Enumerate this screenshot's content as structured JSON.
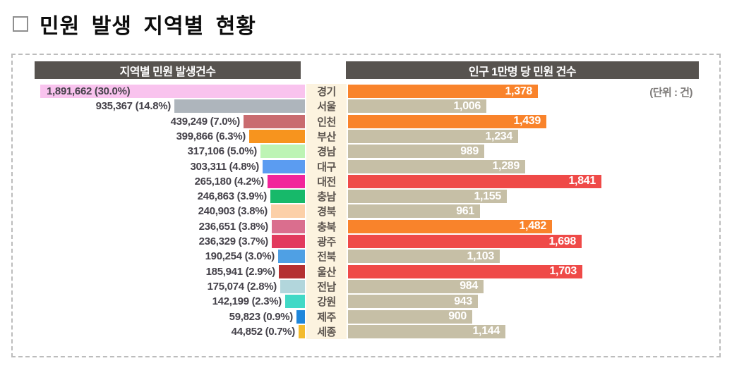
{
  "title": "민원 발생 지역별 현황",
  "panel": {
    "left_header": "지역별 민원 발생건수",
    "right_header": "인구 1만명 당 민원 건수",
    "unit_note": "(단위 : 건)"
  },
  "colors": {
    "header_bg": "#57534f",
    "label_column_bg": "#fcf3df",
    "accent_orange": "#f9832b",
    "accent_red": "#ef4a48",
    "bar_neutral": "#c6bfa6"
  },
  "chart_data": {
    "type": "bar",
    "orientation": "horizontal",
    "title": "민원 발생 지역별 현황",
    "unit": "건",
    "legend_position": "none",
    "grid": false,
    "categories": [
      "경기",
      "서울",
      "인천",
      "부산",
      "경남",
      "대구",
      "대전",
      "충남",
      "경북",
      "충북",
      "광주",
      "전북",
      "울산",
      "전남",
      "강원",
      "제주",
      "세종"
    ],
    "series": [
      {
        "name": "지역별 민원 발생건수",
        "bar_direction": "right-to-left",
        "values": [
          1891662,
          935367,
          439249,
          399866,
          317106,
          303311,
          265180,
          246863,
          240903,
          236651,
          236329,
          190254,
          185941,
          175074,
          142199,
          59823,
          44852
        ],
        "labels": [
          "1,891,662 (30.0%)",
          "935,367 (14.8%)",
          "439,249 (7.0%)",
          "399,866 (6.3%)",
          "317,106 (5.0%)",
          "303,311 (4.8%)",
          "265,180 (4.2%)",
          "246,863 (3.9%)",
          "240,903 (3.8%)",
          "236,651 (3.8%)",
          "236,329 (3.7%)",
          "190,254 (3.0%)",
          "185,941 (2.9%)",
          "175,074 (2.8%)",
          "142,199 (2.3%)",
          "59,823 (0.9%)",
          "44,852 (0.7%)"
        ],
        "colors": [
          "#f9c3ee",
          "#aeb5bc",
          "#c96b6f",
          "#f7941e",
          "#bdf4b4",
          "#5b9cf1",
          "#f2259b",
          "#17b96a",
          "#fcd0a8",
          "#da6e8e",
          "#e23a5e",
          "#4fa0e4",
          "#b53031",
          "#b2d6dc",
          "#41d9c6",
          "#1e86db",
          "#f3bb2e"
        ],
        "xmax": 1891662
      },
      {
        "name": "인구 1만명 당 민원 건수",
        "bar_direction": "left-to-right",
        "values": [
          1378,
          1006,
          1439,
          1234,
          989,
          1289,
          1841,
          1155,
          961,
          1482,
          1698,
          1103,
          1703,
          984,
          943,
          900,
          1144
        ],
        "labels": [
          "1,378",
          "1,006",
          "1,439",
          "1,234",
          "989",
          "1,289",
          "1,841",
          "1,155",
          "961",
          "1,482",
          "1,698",
          "1,103",
          "1,703",
          "984",
          "943",
          "900",
          "1,144"
        ],
        "colors": [
          "#f9832b",
          "#c6bfa6",
          "#f9832b",
          "#c6bfa6",
          "#c6bfa6",
          "#c6bfa6",
          "#ef4a48",
          "#c6bfa6",
          "#c6bfa6",
          "#f9832b",
          "#ef4a48",
          "#c6bfa6",
          "#ef4a48",
          "#c6bfa6",
          "#c6bfa6",
          "#c6bfa6",
          "#c6bfa6"
        ],
        "xmax": 1841
      }
    ]
  }
}
